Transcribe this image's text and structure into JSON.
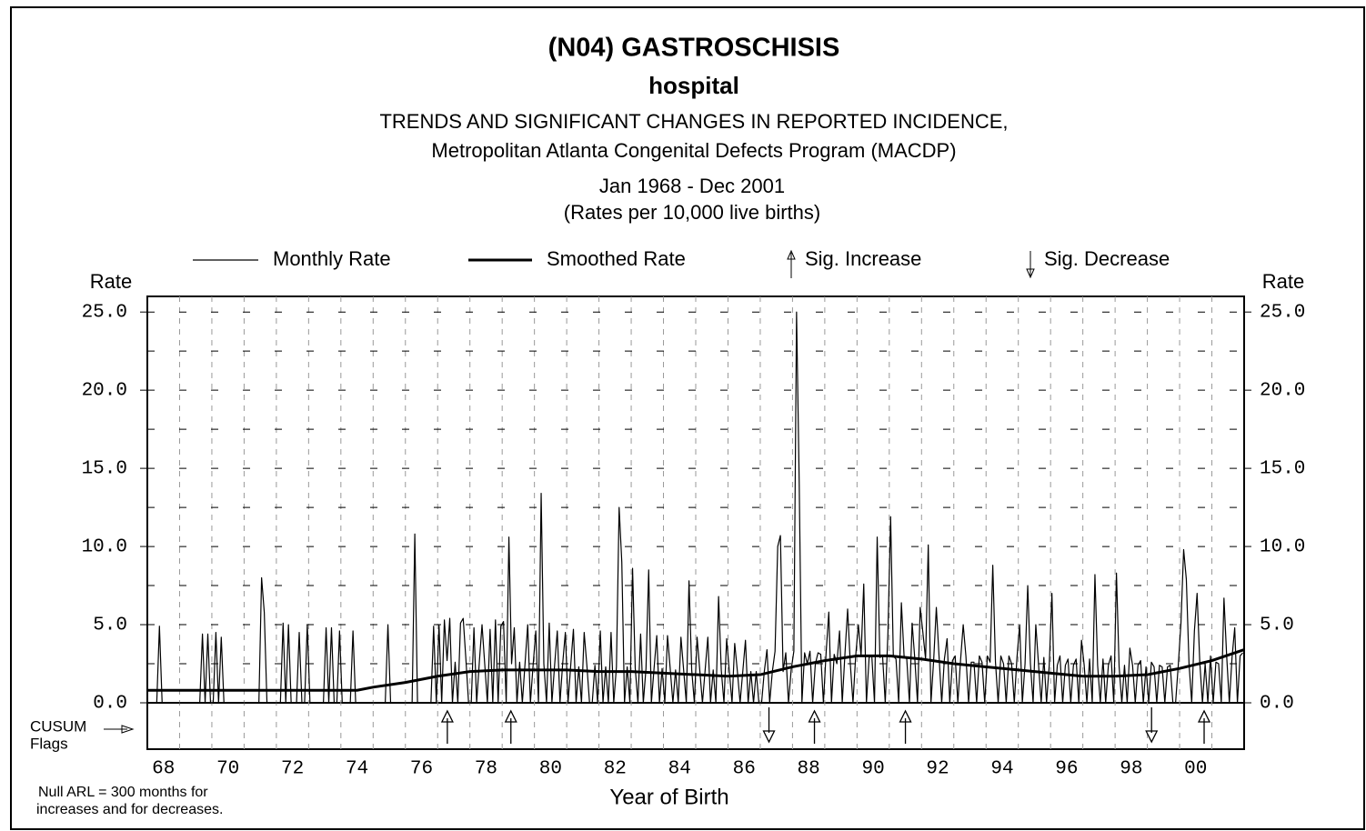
{
  "chart_data": {
    "type": "line",
    "title": "(N04)   GASTROSCHISIS",
    "subtitle": "hospital",
    "description": [
      "TRENDS AND SIGNIFICANT CHANGES IN REPORTED INCIDENCE,",
      "Metropolitan Atlanta Congenital Defects Program (MACDP)",
      "Jan 1968 - Dec 2001",
      "(Rates per 10,000 live births)"
    ],
    "y_label": "Rate",
    "x_label": "Year of Birth",
    "cusum_label": [
      "CUSUM",
      "Flags"
    ],
    "note": [
      "Null ARL = 300 months for",
      "increases and for decreases."
    ],
    "xlim": [
      1968,
      2002
    ],
    "xticks": [
      {
        "value": 1968.5,
        "label": "68"
      },
      {
        "value": 1970.5,
        "label": "70"
      },
      {
        "value": 1972.5,
        "label": "72"
      },
      {
        "value": 1974.5,
        "label": "74"
      },
      {
        "value": 1976.5,
        "label": "76"
      },
      {
        "value": 1978.5,
        "label": "78"
      },
      {
        "value": 1980.5,
        "label": "80"
      },
      {
        "value": 1982.5,
        "label": "82"
      },
      {
        "value": 1984.5,
        "label": "84"
      },
      {
        "value": 1986.5,
        "label": "86"
      },
      {
        "value": 1988.5,
        "label": "88"
      },
      {
        "value": 1990.5,
        "label": "90"
      },
      {
        "value": 1992.5,
        "label": "92"
      },
      {
        "value": 1994.5,
        "label": "94"
      },
      {
        "value": 1996.5,
        "label": "96"
      },
      {
        "value": 1998.5,
        "label": "98"
      },
      {
        "value": 2000.5,
        "label": "00"
      }
    ],
    "xgrid": [
      1969,
      1970,
      1971,
      1972,
      1973,
      1974,
      1975,
      1976,
      1977,
      1978,
      1979,
      1980,
      1981,
      1982,
      1983,
      1984,
      1985,
      1986,
      1987,
      1988,
      1989,
      1990,
      1991,
      1992,
      1993,
      1994,
      1995,
      1996,
      1997,
      1998,
      1999,
      2000,
      2001
    ],
    "ylim": [
      0,
      26
    ],
    "yticks": [
      {
        "value": 0,
        "label": "0.0"
      },
      {
        "value": 5,
        "label": "5.0"
      },
      {
        "value": 10,
        "label": "10.0"
      },
      {
        "value": 15,
        "label": "15.0"
      },
      {
        "value": 20,
        "label": "20.0"
      },
      {
        "value": 25,
        "label": "25.0"
      }
    ],
    "yminor": [
      2.5,
      7.5,
      12.5,
      17.5,
      22.5
    ],
    "grid": true,
    "series": [
      {
        "name": "Monthly Rate",
        "color": "#000000",
        "values": [
          0,
          0,
          0,
          0,
          4.9,
          0,
          0,
          0,
          0,
          0,
          0,
          0,
          0,
          0,
          0,
          0,
          0,
          0,
          0,
          0,
          4.4,
          0,
          4.4,
          0,
          0,
          4.5,
          0,
          4.2,
          0,
          0,
          0,
          0,
          0,
          0,
          0,
          0,
          0,
          0,
          0,
          0,
          0,
          0,
          8.0,
          5.8,
          0,
          0,
          0,
          0,
          0,
          0,
          5.1,
          0,
          5.0,
          0,
          0,
          0,
          4.5,
          0,
          0,
          5.0,
          0,
          0,
          0,
          0,
          0,
          0,
          4.8,
          0,
          4.8,
          0,
          0,
          4.6,
          0,
          0,
          0,
          0,
          4.6,
          0,
          0,
          0,
          0,
          0,
          0,
          0,
          0,
          0,
          0,
          0,
          0,
          5.0,
          0,
          0,
          0,
          0,
          0,
          0,
          0,
          0,
          0,
          10.8,
          0,
          0,
          0,
          0,
          0,
          0,
          4.9,
          0,
          5.0,
          0,
          5.3,
          2.7,
          5.4,
          0,
          2.6,
          0,
          5.1,
          5.4,
          2.8,
          0,
          0,
          4.8,
          0,
          2.6,
          5.0,
          2.5,
          0,
          4.7,
          0,
          5.3,
          0,
          4.9,
          5.2,
          0,
          10.6,
          2.5,
          4.8,
          0,
          2.6,
          0,
          2.5,
          5.0,
          0,
          2.4,
          4.6,
          0,
          13.4,
          2.5,
          0,
          5.1,
          0,
          2.4,
          4.6,
          0,
          2.5,
          4.5,
          0,
          2.4,
          4.7,
          0,
          2.3,
          0,
          4.5,
          2.4,
          0,
          0,
          2.4,
          0,
          4.6,
          0,
          2.3,
          0,
          4.5,
          0,
          2.3,
          12.5,
          9.0,
          0,
          2.3,
          0,
          8.6,
          2.2,
          0,
          4.4,
          0,
          2.2,
          8.5,
          0,
          2.2,
          4.3,
          0,
          2.2,
          0,
          4.3,
          2.2,
          0,
          2.1,
          0,
          4.2,
          2.1,
          0,
          7.8,
          2.1,
          0,
          4.2,
          2.1,
          0,
          2.1,
          4.2,
          0,
          2.1,
          0,
          6.8,
          2.1,
          0,
          4.1,
          2.0,
          0,
          3.8,
          2.0,
          0,
          2.0,
          4.0,
          0,
          2.0,
          0,
          2.0,
          0,
          0,
          2.0,
          3.4,
          0,
          2.0,
          3.3,
          10.0,
          10.7,
          2.0,
          3.2,
          0,
          2.1,
          3.3,
          25.0,
          14.0,
          0,
          3.2,
          2.5,
          3.3,
          0,
          2.5,
          3.2,
          3.1,
          0,
          3.2,
          5.8,
          0,
          3.1,
          2.5,
          4.6,
          0,
          3.1,
          6.0,
          2.5,
          0,
          3.0,
          5.0,
          3.0,
          7.6,
          0,
          2.9,
          3.0,
          0,
          10.6,
          2.9,
          3.0,
          0,
          4.5,
          11.9,
          3.0,
          2.8,
          0,
          6.4,
          3.0,
          2.8,
          0,
          5.1,
          2.8,
          0,
          6.1,
          4.5,
          2.8,
          10.1,
          0,
          2.7,
          6.1,
          3.0,
          0,
          2.8,
          4.1,
          0,
          2.7,
          3.0,
          0,
          2.7,
          5.0,
          3.0,
          0,
          2.6,
          2.6,
          0,
          3.0,
          2.6,
          0,
          3.0,
          2.6,
          8.8,
          2.6,
          0,
          3.0,
          2.5,
          0,
          3.0,
          2.5,
          0,
          2.9,
          5.0,
          0,
          2.5,
          7.5,
          2.5,
          0,
          5.0,
          2.5,
          0,
          2.9,
          0,
          2.4,
          7.0,
          0,
          2.4,
          3.0,
          0,
          2.4,
          2.8,
          0,
          2.4,
          2.8,
          0,
          4.0,
          2.4,
          0,
          2.8,
          0,
          8.2,
          2.4,
          0,
          2.8,
          0,
          2.4,
          3.0,
          0,
          8.3,
          2.3,
          0,
          2.4,
          0,
          3.5,
          2.4,
          0,
          2.4,
          2.7,
          0,
          2.3,
          0,
          2.6,
          2.3,
          0,
          2.4,
          2.3,
          0,
          2.3,
          2.4,
          0,
          0,
          2.4,
          5.1,
          9.8,
          7.9,
          2.5,
          0,
          4.6,
          7.0,
          2.6,
          0,
          2.5,
          0,
          3.0,
          0,
          2.6,
          2.5,
          0,
          6.7,
          3.0,
          0,
          2.9,
          4.8,
          0,
          3.0,
          3.2
        ]
      },
      {
        "name": "Smoothed Rate",
        "color": "#000000",
        "x": [
          1968,
          1969,
          1970,
          1971,
          1972,
          1973,
          1974,
          1974.5,
          1975,
          1976,
          1977,
          1978,
          1979,
          1980,
          1981,
          1982,
          1983,
          1984,
          1985,
          1986,
          1987,
          1988,
          1989,
          1990,
          1991,
          1992,
          1993,
          1994,
          1995,
          1996,
          1997,
          1998,
          1999,
          2000,
          2001,
          2002
        ],
        "values": [
          0.8,
          0.8,
          0.8,
          0.8,
          0.8,
          0.8,
          0.8,
          0.8,
          1.0,
          1.3,
          1.7,
          2.0,
          2.1,
          2.1,
          2.1,
          2.0,
          2.0,
          1.9,
          1.8,
          1.7,
          1.8,
          2.3,
          2.7,
          3.0,
          3.0,
          2.8,
          2.5,
          2.3,
          2.1,
          1.9,
          1.7,
          1.7,
          1.8,
          2.2,
          2.7,
          3.4
        ]
      }
    ],
    "flags": [
      {
        "name": "Sig. Increase",
        "direction": "up",
        "x": [
          1977.3,
          1979.27,
          1988.68,
          1991.5,
          2000.76
        ]
      },
      {
        "name": "Sig. Decrease",
        "direction": "down",
        "x": [
          1987.27,
          1999.13
        ]
      }
    ]
  }
}
